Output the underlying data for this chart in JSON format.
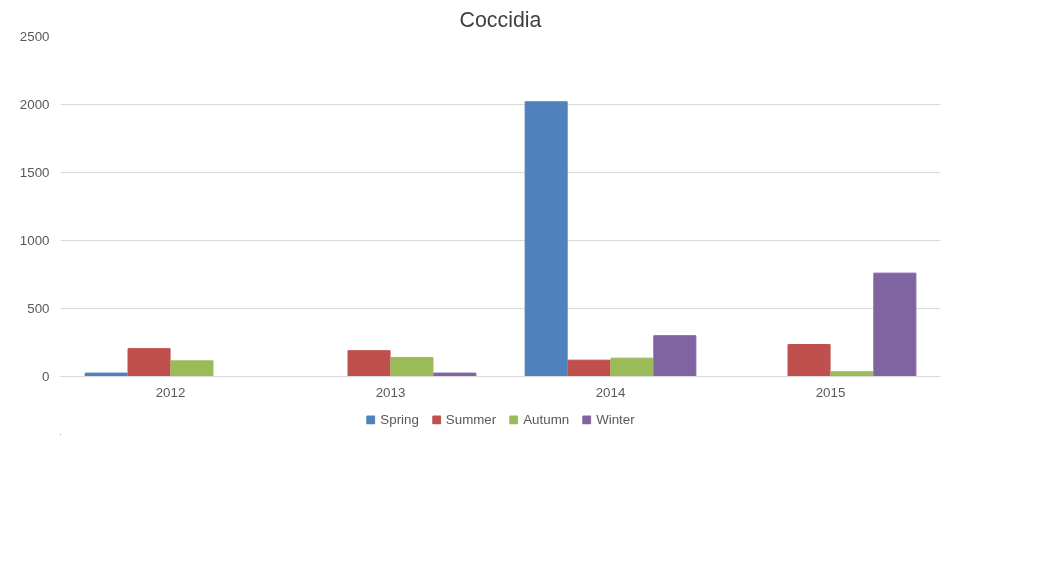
{
  "chart_data": {
    "type": "bar",
    "title": "Coccidia",
    "categories": [
      "2012",
      "2013",
      "2014",
      "2015"
    ],
    "series": [
      {
        "name": "Spring",
        "color": "#4f81bd",
        "values": [
          25,
          null,
          2020,
          null
        ]
      },
      {
        "name": "Summer",
        "color": "#c0504d",
        "values": [
          205,
          190,
          120,
          235
        ]
      },
      {
        "name": "Autumn",
        "color": "#9bbb59",
        "values": [
          115,
          140,
          135,
          35
        ]
      },
      {
        "name": "Winter",
        "color": "#8064a2",
        "values": [
          null,
          25,
          300,
          760
        ]
      }
    ],
    "ylim": [
      0,
      2500
    ],
    "yticks": [
      0,
      500,
      1000,
      1500,
      2000,
      2500
    ],
    "grid": "y",
    "legend": "bottom"
  }
}
